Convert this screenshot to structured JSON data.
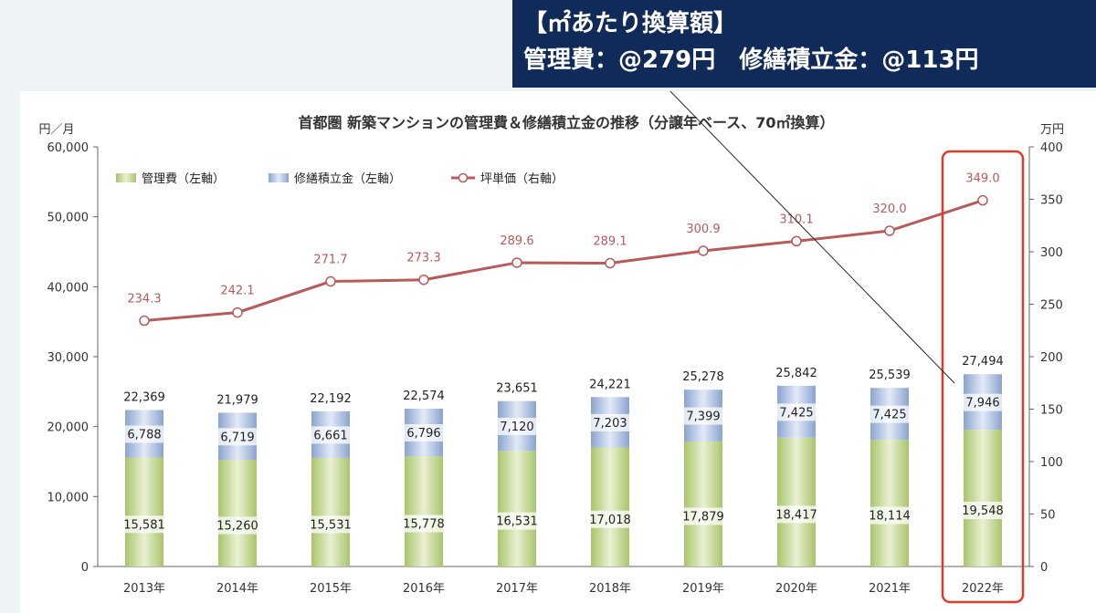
{
  "callout": {
    "line1": "【㎡あたり換算額】",
    "line2": "管理費：@279円　修繕積立金：@113円"
  },
  "colors": {
    "management_fee": "#a6c46a",
    "repair_reserve": "#8ea7d2",
    "price_line": "#b85a5a",
    "label_text": "#b85a5a",
    "highlight_box": "#e03c2e",
    "callout_bg": "#102a5a"
  },
  "chart_data": {
    "type": "bar",
    "title": "首都圏 新築マンションの管理費＆修繕積立金の推移（分譲年ベース、70㎡換算）",
    "left_axis_unit": "円／月",
    "right_axis_unit": "万円",
    "categories": [
      "2013年",
      "2014年",
      "2015年",
      "2016年",
      "2017年",
      "2018年",
      "2019年",
      "2020年",
      "2021年",
      "2022年"
    ],
    "ylim_left": [
      0,
      60000
    ],
    "yticks_left": [
      "0",
      "10,000",
      "20,000",
      "30,000",
      "40,000",
      "50,000",
      "60,000"
    ],
    "ylim_right": [
      0,
      400
    ],
    "yticks_right": [
      "0",
      "50",
      "100",
      "150",
      "200",
      "250",
      "300",
      "350",
      "400"
    ],
    "legend": {
      "placement": "top-left",
      "items": [
        "管理費（左軸）",
        "修繕積立金（左軸）",
        "坪単価（右軸）"
      ]
    },
    "series": [
      {
        "name": "管理費（左軸）",
        "type": "bar-stacked",
        "axis": "left",
        "values": [
          15581,
          15260,
          15531,
          15778,
          16531,
          17018,
          17879,
          18417,
          18114,
          19548
        ],
        "labels": [
          "15,581",
          "15,260",
          "15,531",
          "15,778",
          "16,531",
          "17,018",
          "17,879",
          "18,417",
          "18,114",
          "19,548"
        ]
      },
      {
        "name": "修繕積立金（左軸）",
        "type": "bar-stacked",
        "axis": "left",
        "values": [
          6788,
          6719,
          6661,
          6796,
          7120,
          7203,
          7399,
          7425,
          7425,
          7946
        ],
        "labels": [
          "6,788",
          "6,719",
          "6,661",
          "6,796",
          "7,120",
          "7,203",
          "7,399",
          "7,425",
          "7,425",
          "7,946"
        ]
      },
      {
        "name": "坪単価（右軸）",
        "type": "line",
        "axis": "right",
        "values": [
          234.3,
          242.1,
          271.7,
          273.3,
          289.6,
          289.1,
          300.9,
          310.1,
          320.0,
          349.0
        ],
        "labels": [
          "234.3",
          "242.1",
          "271.7",
          "273.3",
          "289.6",
          "289.1",
          "300.9",
          "310.1",
          "320.0",
          "349.0"
        ]
      }
    ],
    "totals": {
      "values": [
        22369,
        21979,
        22192,
        22574,
        23651,
        24221,
        25278,
        25842,
        25539,
        27494
      ],
      "labels": [
        "22,369",
        "21,979",
        "22,192",
        "22,574",
        "23,651",
        "24,221",
        "25,278",
        "25,842",
        "25,539",
        "27,494"
      ]
    },
    "highlight_category": "2022年",
    "grid": false
  }
}
